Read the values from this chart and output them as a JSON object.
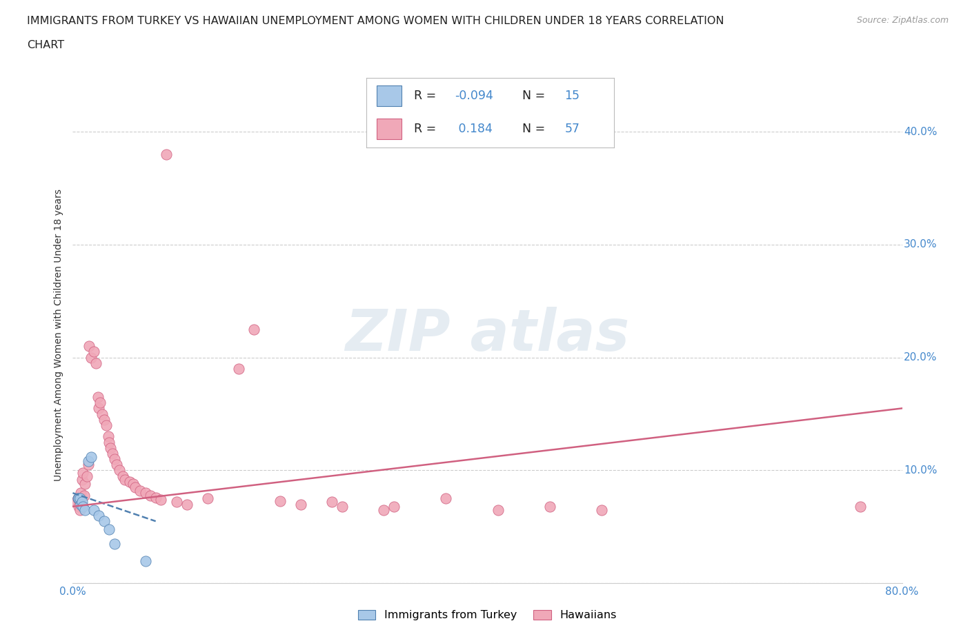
{
  "title_line1": "IMMIGRANTS FROM TURKEY VS HAWAIIAN UNEMPLOYMENT AMONG WOMEN WITH CHILDREN UNDER 18 YEARS CORRELATION",
  "title_line2": "CHART",
  "source": "Source: ZipAtlas.com",
  "ylabel": "Unemployment Among Women with Children Under 18 years",
  "xlim": [
    0.0,
    0.8
  ],
  "ylim": [
    0.0,
    0.44
  ],
  "xticks": [
    0.0,
    0.1,
    0.2,
    0.3,
    0.4,
    0.5,
    0.6,
    0.7,
    0.8
  ],
  "yticks": [
    0.0,
    0.1,
    0.2,
    0.3,
    0.4
  ],
  "color_turkey": "#a8c8e8",
  "color_hawaii": "#f0a8b8",
  "edge_turkey": "#5080b0",
  "edge_hawaii": "#d06080",
  "trendline_turkey_color": "#5080b0",
  "trendline_hawaii_color": "#d06080",
  "label_color": "#4488cc",
  "grid_color": "#cccccc",
  "background_color": "#ffffff",
  "turkey_scatter": [
    [
      0.005,
      0.075
    ],
    [
      0.006,
      0.075
    ],
    [
      0.007,
      0.075
    ],
    [
      0.008,
      0.07
    ],
    [
      0.009,
      0.072
    ],
    [
      0.01,
      0.068
    ],
    [
      0.012,
      0.065
    ],
    [
      0.015,
      0.108
    ],
    [
      0.018,
      0.112
    ],
    [
      0.02,
      0.065
    ],
    [
      0.025,
      0.06
    ],
    [
      0.03,
      0.055
    ],
    [
      0.035,
      0.048
    ],
    [
      0.04,
      0.035
    ],
    [
      0.07,
      0.02
    ]
  ],
  "hawaii_scatter": [
    [
      0.003,
      0.072
    ],
    [
      0.005,
      0.075
    ],
    [
      0.006,
      0.068
    ],
    [
      0.007,
      0.065
    ],
    [
      0.008,
      0.08
    ],
    [
      0.009,
      0.092
    ],
    [
      0.01,
      0.098
    ],
    [
      0.011,
      0.078
    ],
    [
      0.012,
      0.088
    ],
    [
      0.014,
      0.095
    ],
    [
      0.015,
      0.105
    ],
    [
      0.016,
      0.21
    ],
    [
      0.018,
      0.2
    ],
    [
      0.02,
      0.205
    ],
    [
      0.022,
      0.195
    ],
    [
      0.024,
      0.165
    ],
    [
      0.025,
      0.155
    ],
    [
      0.026,
      0.16
    ],
    [
      0.028,
      0.15
    ],
    [
      0.03,
      0.145
    ],
    [
      0.032,
      0.14
    ],
    [
      0.034,
      0.13
    ],
    [
      0.035,
      0.125
    ],
    [
      0.036,
      0.12
    ],
    [
      0.038,
      0.115
    ],
    [
      0.04,
      0.11
    ],
    [
      0.042,
      0.105
    ],
    [
      0.045,
      0.1
    ],
    [
      0.048,
      0.095
    ],
    [
      0.05,
      0.092
    ],
    [
      0.055,
      0.09
    ],
    [
      0.058,
      0.088
    ],
    [
      0.06,
      0.085
    ],
    [
      0.065,
      0.082
    ],
    [
      0.07,
      0.08
    ],
    [
      0.075,
      0.078
    ],
    [
      0.08,
      0.076
    ],
    [
      0.085,
      0.074
    ],
    [
      0.09,
      0.38
    ],
    [
      0.1,
      0.072
    ],
    [
      0.11,
      0.07
    ],
    [
      0.13,
      0.075
    ],
    [
      0.16,
      0.19
    ],
    [
      0.175,
      0.225
    ],
    [
      0.2,
      0.073
    ],
    [
      0.22,
      0.07
    ],
    [
      0.25,
      0.072
    ],
    [
      0.26,
      0.068
    ],
    [
      0.3,
      0.065
    ],
    [
      0.31,
      0.068
    ],
    [
      0.36,
      0.075
    ],
    [
      0.41,
      0.065
    ],
    [
      0.46,
      0.068
    ],
    [
      0.51,
      0.065
    ],
    [
      0.76,
      0.068
    ]
  ],
  "turkey_trend_x": [
    0.0,
    0.08
  ],
  "turkey_trend_y": [
    0.08,
    0.055
  ],
  "hawaii_trend_x": [
    0.0,
    0.8
  ],
  "hawaii_trend_y": [
    0.068,
    0.155
  ]
}
